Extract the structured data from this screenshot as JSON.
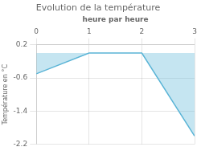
{
  "chart_data": {
    "type": "line",
    "title": "Evolution de la température",
    "xlabel": "heure par heure",
    "ylabel": "Température en °C",
    "x": [
      0,
      1,
      2,
      3
    ],
    "values": [
      -0.5,
      0.0,
      0.0,
      -2.0
    ],
    "color": "#5ab4d6",
    "xlim": [
      0,
      3
    ],
    "xticks": [
      0,
      1,
      2,
      3
    ],
    "ylim": [
      -2.2,
      0.2
    ],
    "yticks": [
      0.2,
      -0.6,
      -1.4,
      -2.2
    ],
    "grid": true
  }
}
